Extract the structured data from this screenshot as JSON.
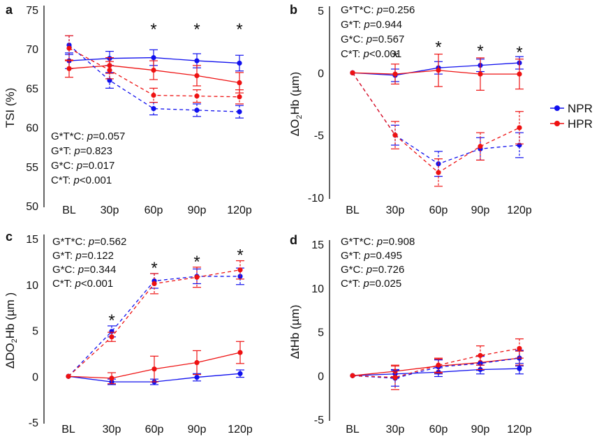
{
  "series_names": [
    "NPR",
    "HPR"
  ],
  "colors": {
    "NPR": "#1010ee",
    "HPR": "#ee1111"
  },
  "legend": [
    {
      "name": "NPR",
      "color": "#1010ee"
    },
    {
      "name": "HPR",
      "color": "#ee1111"
    }
  ],
  "chart_data": [
    {
      "type": "line",
      "panel": "a",
      "ylabel": "TSI (%)",
      "categories": [
        "BL",
        "30p",
        "60p",
        "90p",
        "120p"
      ],
      "ylim": [
        50,
        75
      ],
      "yticks": [
        "50",
        "55",
        "60",
        "65",
        "70",
        "75"
      ],
      "series": [
        {
          "name": "NPR",
          "style": "solid",
          "values": [
            68.5,
            68.8,
            68.9,
            68.5,
            68.2
          ],
          "errors": [
            1.0,
            0.9,
            1.0,
            0.9,
            1.0
          ]
        },
        {
          "name": "HPR",
          "style": "solid",
          "values": [
            67.5,
            67.9,
            67.3,
            66.6,
            65.7
          ],
          "errors": [
            1.1,
            1.0,
            1.2,
            1.3,
            1.3
          ]
        },
        {
          "name": "NPR",
          "style": "dashed",
          "values": [
            70.5,
            66.0,
            62.4,
            62.2,
            62.0
          ],
          "errors": [
            1.2,
            1.0,
            0.8,
            0.8,
            0.8
          ]
        },
        {
          "name": "HPR",
          "style": "dashed",
          "values": [
            70.1,
            67.3,
            64.1,
            64.0,
            63.9
          ],
          "errors": [
            1.6,
            1.1,
            0.9,
            0.8,
            0.9
          ]
        }
      ],
      "significance": [
        "",
        "",
        "*",
        "*",
        "*"
      ],
      "stats": [
        {
          "label": "G*T*C: ",
          "p": "p",
          "value": "=0.057"
        },
        {
          "label": "G*T: ",
          "p": "p",
          "value": "=0.823"
        },
        {
          "label": "G*C: ",
          "p": "p",
          "value": "=0.017"
        },
        {
          "label": "C*T: ",
          "p": "p",
          "value": "<0.001"
        }
      ]
    },
    {
      "type": "line",
      "panel": "b",
      "ylabel_parts": [
        "ΔO",
        "2",
        "Hb (µm)"
      ],
      "categories": [
        "BL",
        "30p",
        "60p",
        "90p",
        "120p"
      ],
      "ylim": [
        -10,
        5
      ],
      "yticks": [
        "-10",
        "-5",
        "0",
        "5"
      ],
      "series": [
        {
          "name": "NPR",
          "style": "solid",
          "values": [
            0,
            -0.2,
            0.4,
            0.6,
            0.8
          ],
          "errors": [
            0,
            0.5,
            0.5,
            0.5,
            0.5
          ]
        },
        {
          "name": "HPR",
          "style": "solid",
          "values": [
            0,
            -0.1,
            0.2,
            -0.1,
            -0.1
          ],
          "errors": [
            0,
            0.8,
            1.3,
            1.3,
            1.2
          ]
        },
        {
          "name": "NPR",
          "style": "dashed",
          "values": [
            0,
            -5.0,
            -7.3,
            -6.1,
            -5.8
          ],
          "errors": [
            0,
            0.8,
            1.0,
            0.9,
            1.0
          ]
        },
        {
          "name": "HPR",
          "style": "dashed",
          "values": [
            0,
            -5.0,
            -8.0,
            -5.9,
            -4.4
          ],
          "errors": [
            0,
            1.1,
            1.1,
            1.1,
            1.3
          ]
        }
      ],
      "significance": [
        "",
        "*",
        "*",
        "*",
        "*"
      ],
      "stats": [
        {
          "label": "G*T*C: ",
          "p": "p",
          "value": "=0.256"
        },
        {
          "label": "G*T: ",
          "p": "p",
          "value": "=0.944"
        },
        {
          "label": "G*C: ",
          "p": "p",
          "value": "=0.567"
        },
        {
          "label": "C*T: ",
          "p": "p",
          "value": "<0.001"
        }
      ]
    },
    {
      "type": "line",
      "panel": "c",
      "ylabel_parts": [
        "ΔDO",
        "2",
        "Hb (µm )"
      ],
      "categories": [
        "BL",
        "30p",
        "60p",
        "90p",
        "120p"
      ],
      "ylim": [
        -5,
        15
      ],
      "yticks": [
        "-5",
        "0",
        "5",
        "10",
        "15"
      ],
      "series": [
        {
          "name": "NPR",
          "style": "solid",
          "values": [
            0,
            -0.6,
            -0.6,
            -0.1,
            0.3
          ],
          "errors": [
            0,
            0.3,
            0.3,
            0.4,
            0.4
          ]
        },
        {
          "name": "HPR",
          "style": "solid",
          "values": [
            0,
            -0.2,
            0.8,
            1.5,
            2.6
          ],
          "errors": [
            0,
            0.6,
            1.4,
            1.3,
            1.2
          ]
        },
        {
          "name": "NPR",
          "style": "dashed",
          "values": [
            0,
            4.9,
            10.4,
            10.9,
            10.9
          ],
          "errors": [
            0,
            0.6,
            0.8,
            0.8,
            0.9
          ]
        },
        {
          "name": "HPR",
          "style": "dashed",
          "values": [
            0,
            4.3,
            10.1,
            10.8,
            11.6
          ],
          "errors": [
            0,
            0.5,
            1.1,
            1.1,
            1.0
          ]
        }
      ],
      "significance": [
        "",
        "*",
        "*",
        "*",
        "*"
      ],
      "stats": [
        {
          "label": "G*T*C: ",
          "p": "p",
          "value": "=0.562"
        },
        {
          "label": "G*T: ",
          "p": "p",
          "value": "=0.122"
        },
        {
          "label": "G*C: ",
          "p": "p",
          "value": "=0.344"
        },
        {
          "label": "C*T: ",
          "p": "p",
          "value": "<0.001"
        }
      ]
    },
    {
      "type": "line",
      "panel": "d",
      "ylabel": "ΔtHb (µm)",
      "categories": [
        "BL",
        "30p",
        "60p",
        "90p",
        "120p"
      ],
      "ylim": [
        -5,
        15
      ],
      "yticks": [
        "-5",
        "0",
        "5",
        "10",
        "15"
      ],
      "series": [
        {
          "name": "NPR",
          "style": "solid",
          "values": [
            0,
            0.2,
            0.4,
            0.7,
            0.8
          ],
          "errors": [
            0,
            0.5,
            0.5,
            0.5,
            0.6
          ]
        },
        {
          "name": "HPR",
          "style": "solid",
          "values": [
            0,
            0.5,
            1.1,
            1.5,
            2.0
          ],
          "errors": [
            0,
            0.6,
            0.8,
            0.8,
            0.8
          ]
        },
        {
          "name": "NPR",
          "style": "dashed",
          "values": [
            0,
            -0.3,
            1.0,
            1.4,
            2.0
          ],
          "errors": [
            0,
            0.9,
            0.8,
            0.8,
            0.9
          ]
        },
        {
          "name": "HPR",
          "style": "dashed",
          "values": [
            0,
            -0.2,
            1.2,
            2.3,
            3.1
          ],
          "errors": [
            0,
            1.4,
            0.8,
            1.1,
            1.1
          ]
        }
      ],
      "significance": [
        "",
        "",
        "",
        "",
        ""
      ],
      "stats": [
        {
          "label": "G*T*C: ",
          "p": "p",
          "value": "=0.908"
        },
        {
          "label": "G*T: ",
          "p": "p",
          "value": "=0.495"
        },
        {
          "label": "G*C: ",
          "p": "p",
          "value": "=0.726"
        },
        {
          "label": "C*T: ",
          "p": "p",
          "value": "=0.025"
        }
      ]
    }
  ]
}
